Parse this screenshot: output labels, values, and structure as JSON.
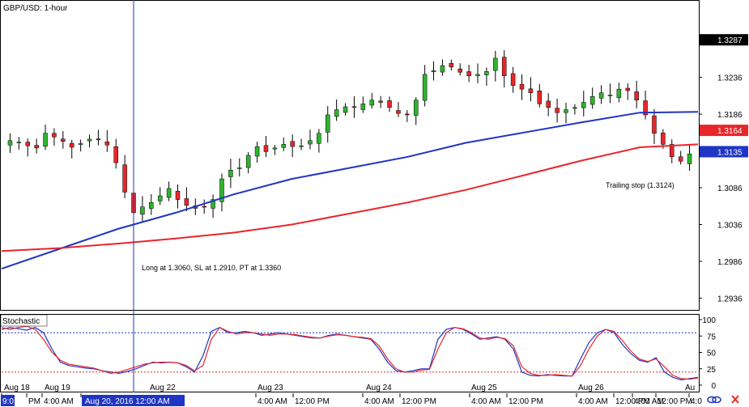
{
  "chart_data": [
    {
      "type": "candlestick",
      "title": "GBP/USD: 1-hour",
      "ylim": [
        1.292,
        1.334
      ],
      "yticks": [
        "1.3287",
        "1.3236",
        "1.3186",
        "1.3135",
        "1.3086",
        "1.3036",
        "1.2986",
        "1.2936"
      ],
      "price_badges": [
        {
          "value": "1.3287",
          "kind": "cursor",
          "color": "#000000"
        },
        {
          "value": "1.3164",
          "kind": "ma_red",
          "color": "#e8262a"
        },
        {
          "value": "1.3135",
          "kind": "ma_blue",
          "color": "#1f35c4"
        }
      ],
      "colors": {
        "up": "#2db52d",
        "down": "#e8262a",
        "wick": "#000000",
        "ma_fast": "#1f35c4",
        "ma_slow": "#e8262a"
      },
      "series": [
        {
          "name": "blue_ma",
          "values": [
            1.2976,
            1.3003,
            1.303,
            1.3052,
            1.3077,
            1.3098,
            1.3113,
            1.3128,
            1.3147,
            1.3161,
            1.3175,
            1.3188,
            1.3189
          ]
        },
        {
          "name": "red_ma",
          "values": [
            1.3,
            1.3004,
            1.301,
            1.3017,
            1.3025,
            1.3036,
            1.3051,
            1.3066,
            1.3083,
            1.3103,
            1.3123,
            1.3141,
            1.3145
          ]
        }
      ],
      "close_path": [
        1.315,
        1.3148,
        1.3143,
        1.314,
        1.316,
        1.3155,
        1.3149,
        1.3141,
        1.3146,
        1.3152,
        1.3151,
        1.3144,
        1.312,
        1.308,
        1.3052,
        1.306,
        1.3066,
        1.3075,
        1.3085,
        1.307,
        1.3062,
        1.3058,
        1.306,
        1.307,
        1.3098,
        1.311,
        1.3113,
        1.313,
        1.3142,
        1.3135,
        1.314,
        1.3145,
        1.3142,
        1.3143,
        1.315,
        1.316,
        1.3185,
        1.3192,
        1.3196,
        1.3195,
        1.32,
        1.3205,
        1.3202,
        1.3195,
        1.3187,
        1.3185,
        1.3205,
        1.324,
        1.3245,
        1.3252,
        1.325,
        1.3243,
        1.3238,
        1.324,
        1.3244,
        1.3262,
        1.3238,
        1.3225,
        1.322,
        1.3215,
        1.32,
        1.3195,
        1.3188,
        1.3192,
        1.3195,
        1.3202,
        1.321,
        1.3215,
        1.3212,
        1.322,
        1.3218,
        1.3205,
        1.3185,
        1.316,
        1.3145,
        1.3128,
        1.3122,
        1.3132
      ],
      "annotations": [
        {
          "text": "Long at 1.3060, SL at 1.2910, PT at 1.3360"
        },
        {
          "text": "Trailing stop (1.3124)"
        }
      ],
      "date_labels": [
        "Aug 18",
        "Aug 19",
        "Aug 22",
        "Aug 23",
        "Aug 24",
        "Aug 25",
        "Aug 26",
        "Au"
      ]
    },
    {
      "type": "line",
      "title": "Stochastic",
      "ylim": [
        0,
        100
      ],
      "yticks": [
        "100",
        "75",
        "50",
        "25",
        "0"
      ],
      "levels": [
        80,
        20
      ],
      "series": [
        {
          "name": "main",
          "color": "#1f35c4",
          "values": [
            85,
            88,
            86,
            84,
            88,
            80,
            55,
            35,
            30,
            28,
            26,
            25,
            22,
            20,
            18,
            21,
            25,
            30,
            35,
            34,
            35,
            34,
            28,
            20,
            45,
            82,
            88,
            80,
            80,
            82,
            80,
            76,
            78,
            80,
            78,
            76,
            74,
            72,
            72,
            76,
            78,
            76,
            74,
            72,
            70,
            55,
            35,
            22,
            20,
            22,
            25,
            25,
            70,
            85,
            88,
            85,
            78,
            70,
            72,
            74,
            70,
            55,
            20,
            15,
            14,
            16,
            15,
            14,
            14,
            40,
            65,
            80,
            85,
            80,
            62,
            48,
            38,
            35,
            42,
            20,
            12,
            8,
            10,
            12
          ]
        },
        {
          "name": "signal",
          "color": "#e8262a",
          "values": [
            88,
            85,
            88,
            90,
            85,
            70,
            50,
            38,
            32,
            30,
            28,
            26,
            22,
            18,
            20,
            24,
            28,
            32,
            34,
            35,
            35,
            34,
            30,
            22,
            30,
            70,
            88,
            82,
            78,
            80,
            80,
            78,
            76,
            78,
            78,
            77,
            75,
            73,
            72,
            75,
            77,
            76,
            74,
            73,
            71,
            60,
            40,
            25,
            20,
            20,
            23,
            24,
            55,
            80,
            88,
            86,
            80,
            72,
            70,
            73,
            71,
            60,
            28,
            18,
            15,
            15,
            16,
            15,
            14,
            30,
            55,
            75,
            85,
            82,
            68,
            52,
            40,
            36,
            40,
            28,
            15,
            10,
            9,
            11
          ]
        }
      ]
    }
  ],
  "x_axis": {
    "time_labels": [
      "9:0",
      "PM",
      "4:00 AM",
      "12:00 PM",
      "4:00 AM",
      "12:00 PM",
      "4:00 AM",
      "12:00 PM",
      "4:00 AM",
      "12:00 PM",
      "4:00 AM",
      "12:00 PM",
      "4:00 AM",
      "12:00 PM",
      "4:0"
    ],
    "cursor_label": "Aug 20, 2016 12:00 AM"
  },
  "footer_icons": [
    "link-icon",
    "close-icon"
  ]
}
